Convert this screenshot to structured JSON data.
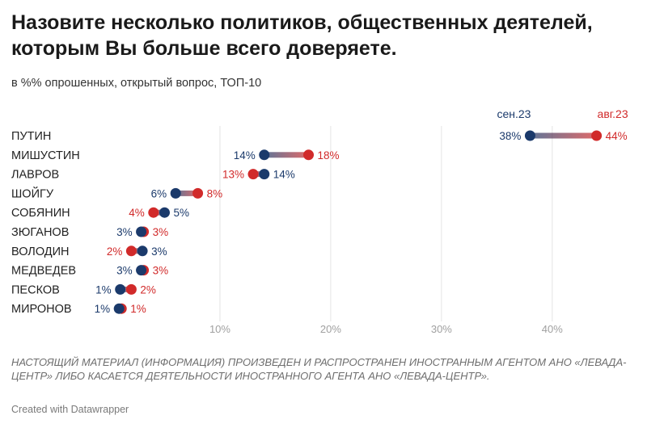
{
  "title": "Назовите несколько политиков, общественных деятелей, которым Вы больше всего доверяете.",
  "subtitle": "в %% опрошенных, открытый вопрос, ТОП-10",
  "notes": "НАСТОЯЩИЙ МАТЕРИАЛ (ИНФОРМАЦИЯ) ПРОИЗВЕДЕН И РАСПРОСТРАНЕН ИНОСТРАННЫМ АГЕНТОМ АНО «ЛЕВАДА-ЦЕНТР» ЛИБО КАСАЕТСЯ ДЕЯТЕЛЬНОСТИ ИНОСТРАННОГО АГЕНТА АНО «ЛЕВАДА-ЦЕНТР».",
  "credit": "Created with Datawrapper",
  "colors": {
    "sep23": "#1b3a6b",
    "aug23": "#d12a2a",
    "grid": "#e4e4e4",
    "axis": "#a0a0a0"
  },
  "chart_data": {
    "type": "dot-range",
    "title": "Назовите несколько политиков, общественных деятелей, которым Вы больше всего доверяете.",
    "subtitle": "в %% опрошенных, открытый вопрос, ТОП-10",
    "xlim": [
      0,
      46
    ],
    "x_ticks": [
      10,
      20,
      30,
      40
    ],
    "x_tick_labels": [
      "10%",
      "20%",
      "30%",
      "40%"
    ],
    "legend": {
      "position": "top-right",
      "sep23": "сен.23",
      "aug23": "авг.23"
    },
    "rows": [
      {
        "name": "ПУТИН",
        "sep23": 38,
        "aug23": 44,
        "sep23_label": "38%",
        "aug23_label": "44%"
      },
      {
        "name": "МИШУСТИН",
        "sep23": 14,
        "aug23": 18,
        "sep23_label": "14%",
        "aug23_label": "18%"
      },
      {
        "name": "ЛАВРОВ",
        "sep23": 14,
        "aug23": 13,
        "sep23_label": "14%",
        "aug23_label": "13%"
      },
      {
        "name": "ШОЙГУ",
        "sep23": 6,
        "aug23": 8,
        "sep23_label": "6%",
        "aug23_label": "8%"
      },
      {
        "name": "СОБЯНИН",
        "sep23": 5,
        "aug23": 4,
        "sep23_label": "5%",
        "aug23_label": "4%"
      },
      {
        "name": "ЗЮГАНОВ",
        "sep23": 3,
        "aug23": 3,
        "sep23_label": "3%",
        "aug23_label": "3%"
      },
      {
        "name": "ВОЛОДИН",
        "sep23": 3,
        "aug23": 2,
        "sep23_label": "3%",
        "aug23_label": "2%"
      },
      {
        "name": "МЕДВЕДЕВ",
        "sep23": 3,
        "aug23": 3,
        "sep23_label": "3%",
        "aug23_label": "3%"
      },
      {
        "name": "ПЕСКОВ",
        "sep23": 1,
        "aug23": 2,
        "sep23_label": "1%",
        "aug23_label": "2%"
      },
      {
        "name": "МИРОНОВ",
        "sep23": 1,
        "aug23": 1,
        "sep23_label": "1%",
        "aug23_label": "1%"
      }
    ]
  }
}
